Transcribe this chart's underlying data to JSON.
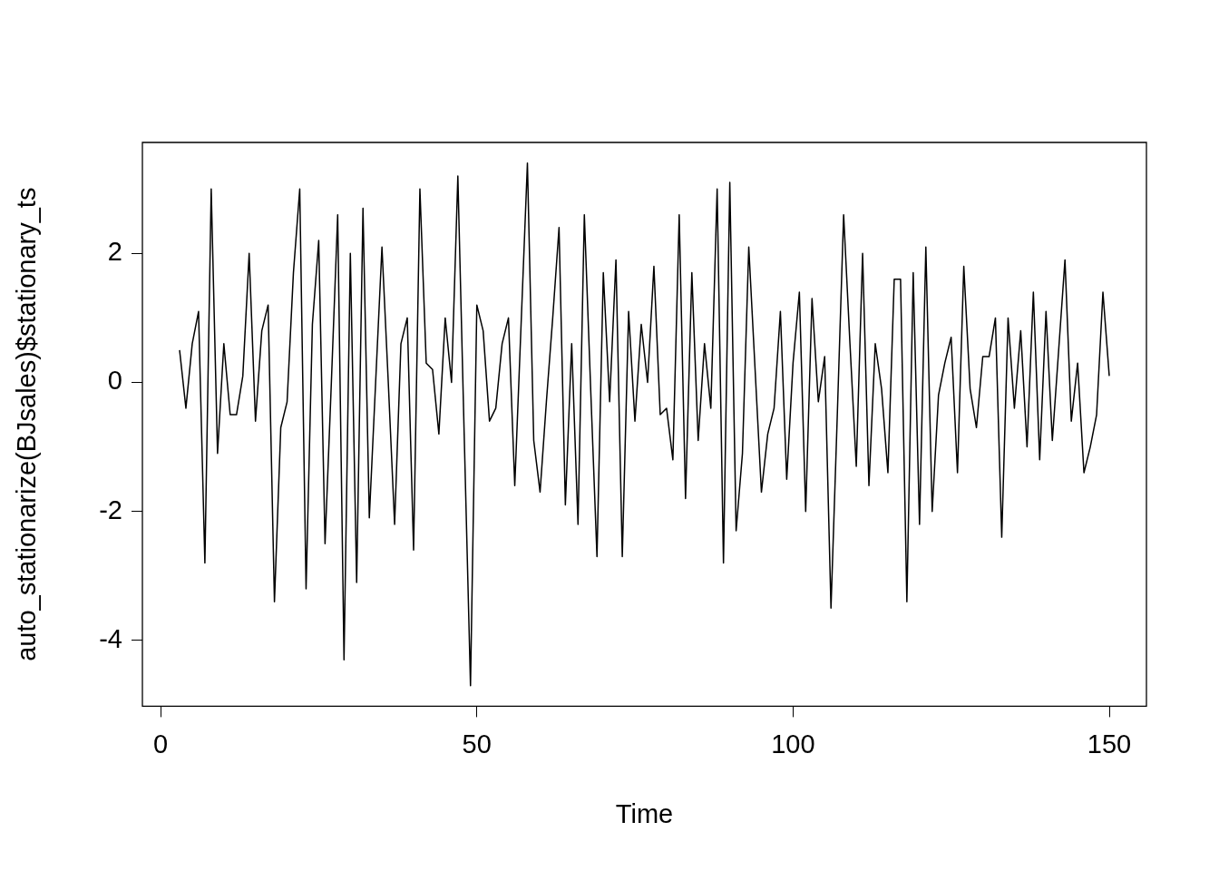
{
  "chart_data": {
    "type": "line",
    "xlabel": "Time",
    "ylabel": "auto_stationarize(BJsales)$stationary_ts",
    "xlim": [
      -2.88,
      155.88
    ],
    "xticks": [
      0,
      50,
      100,
      150
    ],
    "ylim": [
      -5.02,
      3.72
    ],
    "yticks": [
      -4,
      -2,
      0,
      2
    ],
    "grid": false,
    "legend": false,
    "marker": "none",
    "line_style": "solid",
    "series": [
      {
        "color": "#000000",
        "x": [
          3,
          4,
          5,
          6,
          7,
          8,
          9,
          10,
          11,
          12,
          13,
          14,
          15,
          16,
          17,
          18,
          19,
          20,
          21,
          22,
          23,
          24,
          25,
          26,
          27,
          28,
          29,
          30,
          31,
          32,
          33,
          34,
          35,
          36,
          37,
          38,
          39,
          40,
          41,
          42,
          43,
          44,
          45,
          46,
          47,
          48,
          49,
          50,
          51,
          52,
          53,
          54,
          55,
          56,
          57,
          58,
          59,
          60,
          61,
          62,
          63,
          64,
          65,
          66,
          67,
          68,
          69,
          70,
          71,
          72,
          73,
          74,
          75,
          76,
          77,
          78,
          79,
          80,
          81,
          82,
          83,
          84,
          85,
          86,
          87,
          88,
          89,
          90,
          91,
          92,
          93,
          94,
          95,
          96,
          97,
          98,
          99,
          100,
          101,
          102,
          103,
          104,
          105,
          106,
          107,
          108,
          109,
          110,
          111,
          112,
          113,
          114,
          115,
          116,
          117,
          118,
          119,
          120,
          121,
          122,
          123,
          124,
          125,
          126,
          127,
          128,
          129,
          130,
          131,
          132,
          133,
          134,
          135,
          136,
          137,
          138,
          139,
          140,
          141,
          142,
          143,
          144,
          145,
          146,
          147,
          148,
          149,
          150
        ],
        "values": [
          0.5,
          -0.4,
          0.6,
          1.1,
          -2.8,
          3.0,
          -1.1,
          0.6,
          -0.5,
          -0.5,
          0.1,
          2.0,
          -0.6,
          0.8,
          1.2,
          -3.4,
          -0.7,
          -0.3,
          1.7,
          3.0,
          -3.2,
          0.9,
          2.2,
          -2.5,
          0.0,
          2.6,
          -4.3,
          2.0,
          -3.1,
          2.7,
          -2.1,
          0.0,
          2.1,
          0.0,
          -2.2,
          0.6,
          1.0,
          -2.6,
          3.0,
          0.3,
          0.2,
          -0.8,
          1.0,
          0.0,
          3.2,
          -0.8,
          -4.7,
          1.2,
          0.8,
          -0.6,
          -0.4,
          0.6,
          1.0,
          -1.6,
          0.9,
          3.4,
          -0.9,
          -1.7,
          -0.3,
          1.0,
          2.4,
          -1.9,
          0.6,
          -2.2,
          2.6,
          -0.1,
          -2.7,
          1.7,
          -0.3,
          1.9,
          -2.7,
          1.1,
          -0.6,
          0.9,
          0.0,
          1.8,
          -0.5,
          -0.4,
          -1.2,
          2.6,
          -1.8,
          1.7,
          -0.9,
          0.6,
          -0.4,
          3.0,
          -2.8,
          3.1,
          -2.3,
          -1.1,
          2.1,
          0.2,
          -1.7,
          -0.8,
          -0.4,
          1.1,
          -1.5,
          0.3,
          1.4,
          -2.0,
          1.3,
          -0.3,
          0.4,
          -3.5,
          -0.5,
          2.6,
          0.6,
          -1.3,
          2.0,
          -1.6,
          0.6,
          -0.1,
          -1.4,
          1.6,
          1.6,
          -3.4,
          1.7,
          -2.2,
          2.1,
          -2.0,
          -0.2,
          0.3,
          0.7,
          -1.4,
          1.8,
          -0.1,
          -0.7,
          0.4,
          0.4,
          1.0,
          -2.4,
          1.0,
          -0.4,
          0.8,
          -1.0,
          1.4,
          -1.2,
          1.1,
          -0.9,
          0.5,
          1.9,
          -0.6,
          0.3,
          -1.4,
          -1.0,
          -0.5,
          1.4,
          0.1
        ]
      }
    ]
  }
}
